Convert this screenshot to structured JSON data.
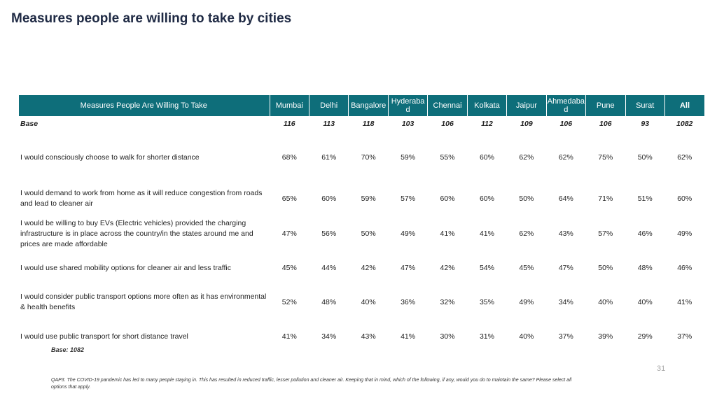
{
  "title": "Measures people are willing to take by cities",
  "table": {
    "headers": [
      "Measures People Are Willing To Take",
      "Mumbai",
      "Delhi",
      "Bangalore",
      "Hyderabad",
      "Chennai",
      "Kolkata",
      "Jaipur",
      "Ahmedabad",
      "Pune",
      "Surat",
      "All"
    ],
    "base_row": [
      "Base",
      "116",
      "113",
      "118",
      "103",
      "106",
      "112",
      "109",
      "106",
      "106",
      "93",
      "1082"
    ],
    "rows": [
      [
        "I would consciously choose to walk for shorter distance",
        "68%",
        "61%",
        "70%",
        "59%",
        "55%",
        "60%",
        "62%",
        "62%",
        "75%",
        "50%",
        "62%"
      ],
      [
        "I would demand to work from home as it will reduce congestion from roads and lead to cleaner air",
        "65%",
        "60%",
        "59%",
        "57%",
        "60%",
        "60%",
        "50%",
        "64%",
        "71%",
        "51%",
        "60%"
      ],
      [
        "I would be willing to buy EVs (Electric vehicles) provided the charging infrastructure is in place across the country/in the states around me and prices are made affordable",
        "47%",
        "56%",
        "50%",
        "49%",
        "41%",
        "41%",
        "62%",
        "43%",
        "57%",
        "46%",
        "49%"
      ],
      [
        "I would use shared mobility options for cleaner air and less traffic",
        "45%",
        "44%",
        "42%",
        "47%",
        "42%",
        "54%",
        "45%",
        "47%",
        "50%",
        "48%",
        "46%"
      ],
      [
        "I would consider public transport options more often as it has environmental & health benefits",
        "52%",
        "48%",
        "40%",
        "36%",
        "32%",
        "35%",
        "49%",
        "34%",
        "40%",
        "40%",
        "41%"
      ],
      [
        "I would use public transport for short distance travel",
        "41%",
        "34%",
        "43%",
        "41%",
        "30%",
        "31%",
        "40%",
        "37%",
        "39%",
        "29%",
        "37%"
      ]
    ]
  },
  "base_note": "Base: 1082",
  "page_number": "31",
  "footnote": "QAP3. The COVID-19 pandemic has led to many people staying in. This has resulted in reduced traffic, lesser pollution and cleaner air. Keeping that in mind, which of the following, if any, would you do to maintain the same? Please select all options that apply.",
  "colors": {
    "header_bg": "#0e6e7a",
    "header_text": "#ffffff",
    "title": "#1f2a44"
  }
}
